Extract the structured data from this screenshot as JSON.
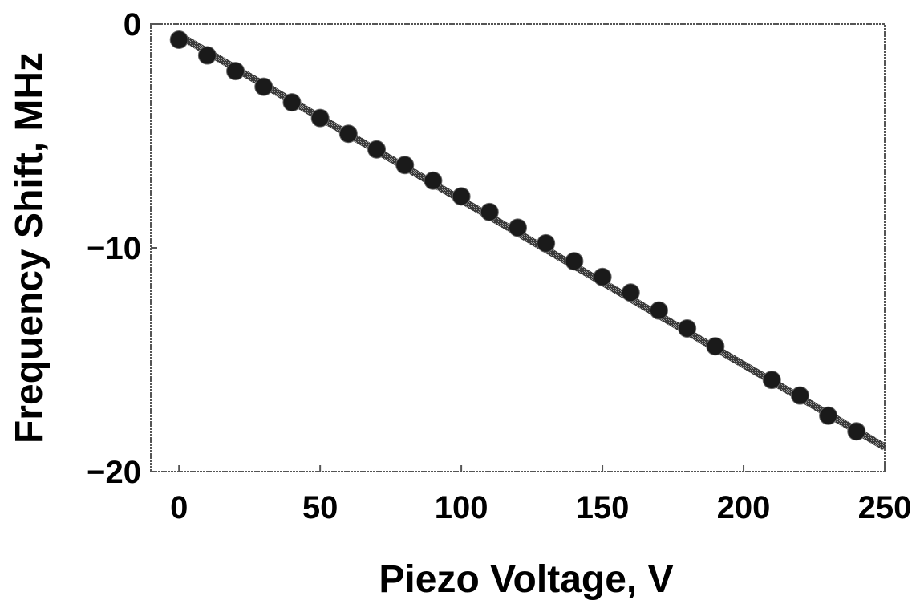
{
  "chart_data": {
    "type": "scatter",
    "title": "",
    "xlabel": "Piezo Voltage, V",
    "ylabel": "Frequency Shift, MHz",
    "xlim": [
      -10,
      250
    ],
    "ylim": [
      -20,
      0
    ],
    "x_ticks": [
      0,
      50,
      100,
      150,
      200,
      250
    ],
    "y_ticks": [
      0,
      -10,
      -20
    ],
    "grid": false,
    "legend": "none",
    "series": [
      {
        "type": "scatter",
        "x": [
          0,
          10,
          20,
          30,
          40,
          50,
          60,
          70,
          80,
          90,
          100,
          110,
          120,
          130,
          140,
          150,
          160,
          170,
          180,
          190,
          210,
          220,
          230,
          240
        ],
        "y": [
          -0.7,
          -1.4,
          -2.1,
          -2.8,
          -3.5,
          -4.2,
          -4.9,
          -5.6,
          -6.3,
          -7.0,
          -7.7,
          -8.4,
          -9.1,
          -9.8,
          -10.6,
          -11.3,
          -12.0,
          -12.8,
          -13.6,
          -14.4,
          -15.9,
          -16.6,
          -17.5,
          -18.2
        ]
      },
      {
        "type": "line",
        "x": [
          0,
          250
        ],
        "y": [
          -0.5,
          -18.9
        ]
      }
    ],
    "colors": {
      "marker": "#1a1a1a",
      "line": "#444444",
      "axis": "#555555"
    }
  }
}
